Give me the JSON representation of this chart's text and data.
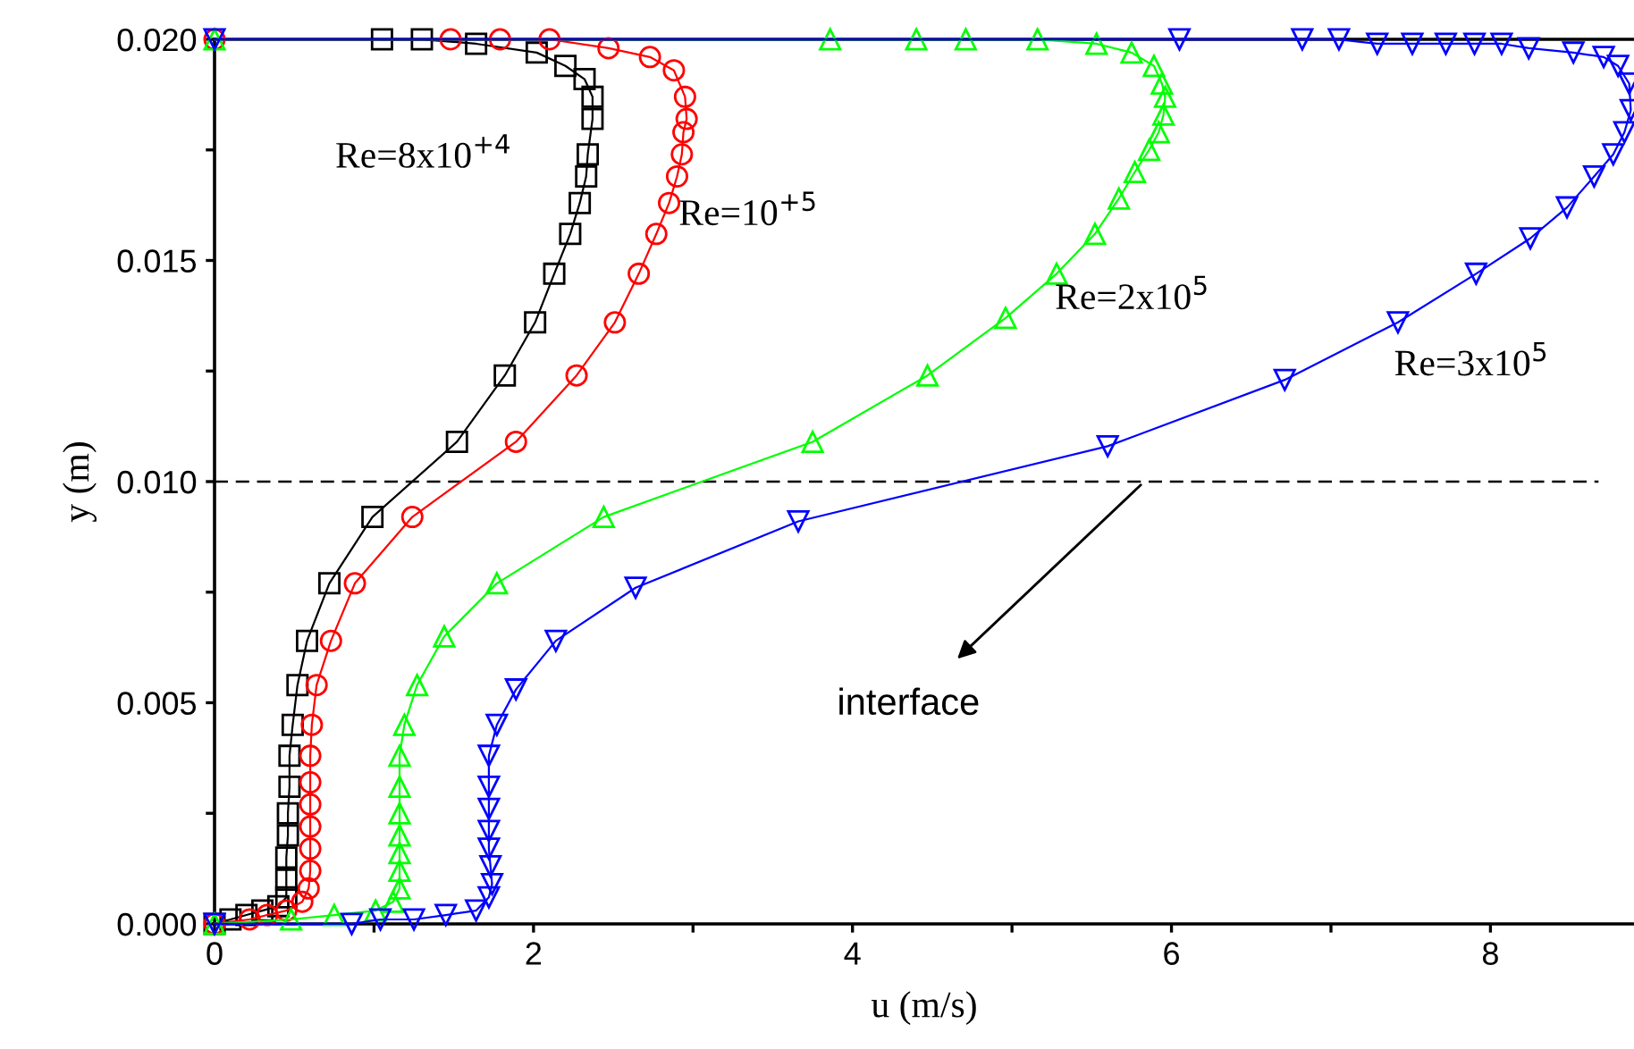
{
  "chart_data": {
    "type": "line",
    "xlabel": "u (m/s)",
    "ylabel": "y (m)",
    "xlim": [
      0,
      8.9
    ],
    "ylim": [
      0,
      0.02
    ],
    "xticks": [
      0,
      {
        "value": 1,
        "label": null
      },
      2,
      {
        "value": 3,
        "label": null
      },
      4,
      {
        "value": 5,
        "label": null
      },
      6,
      {
        "value": 7,
        "label": null
      },
      8
    ],
    "yticks": [
      {
        "value": 0,
        "label": "0.000"
      },
      {
        "value": 0.0025,
        "label": null
      },
      {
        "value": 0.005,
        "label": "0.005"
      },
      {
        "value": 0.0075,
        "label": null
      },
      {
        "value": 0.01,
        "label": "0.010"
      },
      {
        "value": 0.0125,
        "label": null
      },
      {
        "value": 0.015,
        "label": "0.015"
      },
      {
        "value": 0.0175,
        "label": null
      },
      {
        "value": 0.02,
        "label": "0.020"
      }
    ],
    "grid": false,
    "legend": false,
    "line_style": "solid",
    "ref_lines": [
      {
        "axis": "y",
        "value": 0.01,
        "label": null,
        "color": "#000000",
        "line_style": "dashed"
      }
    ],
    "annotations": [
      {
        "text": "interface",
        "x": 5.83,
        "y": 0.01
      }
    ],
    "series": [
      {
        "name": "Re=8x10$^{+4}$",
        "color": "#000000",
        "marker": "square",
        "x": [
          0,
          0.1,
          0.2,
          0.3,
          0.4,
          0.45,
          0.45,
          0.45,
          0.46,
          0.46,
          0.47,
          0.47,
          0.49,
          0.52,
          0.58,
          0.72,
          0.99,
          1.52,
          1.82,
          2.01,
          2.13,
          2.23,
          2.29,
          2.33,
          2.34,
          2.37,
          2.37,
          2.32,
          2.2,
          2.02,
          1.64,
          1.3,
          1.05
        ],
        "values": [
          0,
          0.0001,
          0.0002,
          0.0003,
          0.0004,
          0.0006,
          0.001,
          0.0015,
          0.002,
          0.0025,
          0.0031,
          0.0038,
          0.0045,
          0.0054,
          0.0064,
          0.0077,
          0.0092,
          0.0109,
          0.0124,
          0.0136,
          0.0147,
          0.0156,
          0.0163,
          0.0169,
          0.0174,
          0.0182,
          0.0187,
          0.0191,
          0.0194,
          0.0197,
          0.0199,
          0.02,
          0.02
        ]
      },
      {
        "name": "Re=10$^{+5}$",
        "color": "#ff0000",
        "marker": "circle",
        "x": [
          0,
          0.22,
          0.33,
          0.45,
          0.55,
          0.59,
          0.6,
          0.6,
          0.6,
          0.6,
          0.6,
          0.6,
          0.61,
          0.64,
          0.73,
          0.88,
          1.24,
          1.89,
          2.27,
          2.51,
          2.66,
          2.77,
          2.85,
          2.9,
          2.93,
          2.94,
          2.96,
          2.95,
          2.88,
          2.73,
          2.47,
          2.1,
          1.79,
          1.48,
          0
        ],
        "values": [
          0,
          0.0001,
          0.0002,
          0.0003,
          0.0005,
          0.0008,
          0.0012,
          0.0017,
          0.0022,
          0.0027,
          0.0032,
          0.0038,
          0.0045,
          0.0054,
          0.0064,
          0.0077,
          0.0092,
          0.0109,
          0.0124,
          0.0136,
          0.0147,
          0.0156,
          0.0163,
          0.0169,
          0.0174,
          0.0179,
          0.0182,
          0.0187,
          0.0193,
          0.0196,
          0.0198,
          0.02,
          0.02,
          0.02,
          0.02
        ]
      },
      {
        "name": "Re=2x10$^{5}$",
        "color": "#00ff00",
        "marker": "triangle",
        "x": [
          0,
          0.48,
          0.75,
          1.01,
          1.12,
          1.16,
          1.16,
          1.16,
          1.16,
          1.16,
          1.16,
          1.16,
          1.19,
          1.27,
          1.44,
          1.77,
          2.44,
          3.75,
          4.47,
          4.96,
          5.28,
          5.52,
          5.67,
          5.77,
          5.86,
          5.92,
          5.95,
          5.96,
          5.94,
          5.89,
          5.75,
          5.53,
          5.16,
          4.71,
          4.4,
          3.86,
          0
        ],
        "values": [
          0,
          0.0001,
          0.0002,
          0.0003,
          0.0005,
          0.0008,
          0.0012,
          0.0016,
          0.002,
          0.0025,
          0.0031,
          0.0038,
          0.0045,
          0.0054,
          0.0065,
          0.0077,
          0.0092,
          0.0109,
          0.0124,
          0.0137,
          0.0147,
          0.0156,
          0.0164,
          0.017,
          0.0175,
          0.0179,
          0.0183,
          0.0187,
          0.019,
          0.0194,
          0.0197,
          0.0199,
          0.02,
          0.02,
          0.02,
          0.02,
          0.02
        ]
      },
      {
        "name": "Re=3x10$^{5}$",
        "color": "#0000ff",
        "marker": "triangle_down",
        "x": [
          0,
          0.86,
          1.04,
          1.25,
          1.45,
          1.64,
          1.72,
          1.74,
          1.73,
          1.72,
          1.72,
          1.72,
          1.72,
          1.72,
          1.77,
          1.89,
          2.14,
          2.64,
          3.66,
          5.6,
          6.71,
          7.42,
          7.91,
          8.25,
          8.48,
          8.65,
          8.77,
          8.84,
          8.88,
          8.87,
          8.8,
          8.71,
          8.52,
          8.24,
          8.07,
          7.9,
          7.72,
          7.51,
          7.29,
          7.05,
          6.82,
          6.05,
          0
        ],
        "values": [
          0,
          0.0,
          0.0001,
          0.0001,
          0.0002,
          0.0003,
          0.0006,
          0.0009,
          0.0013,
          0.0017,
          0.0021,
          0.0026,
          0.0031,
          0.0038,
          0.0045,
          0.0053,
          0.0064,
          0.0076,
          0.0091,
          0.0108,
          0.0123,
          0.0136,
          0.0147,
          0.0155,
          0.0162,
          0.0169,
          0.0174,
          0.0179,
          0.0184,
          0.019,
          0.0194,
          0.0196,
          0.0197,
          0.0198,
          0.0199,
          0.0199,
          0.0199,
          0.0199,
          0.0199,
          0.02,
          0.02,
          0.02,
          0.02
        ]
      }
    ]
  }
}
